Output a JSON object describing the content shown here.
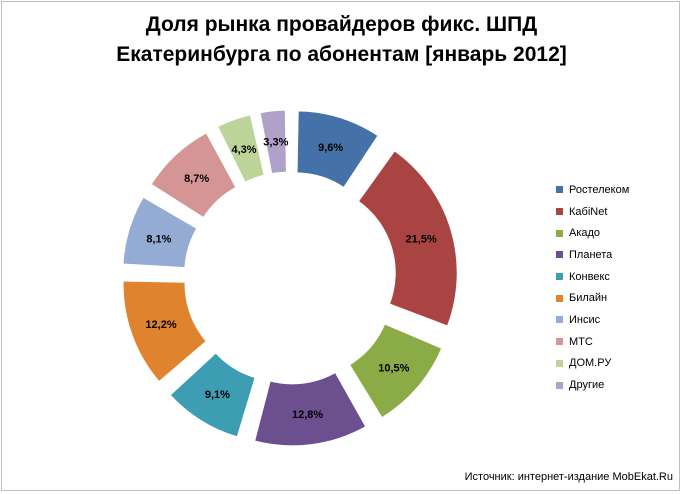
{
  "chart_data": {
    "type": "pie",
    "variant": "exploded-doughnut",
    "title_lines": [
      "Доля рынка провайдеров фикс. ШПД",
      "Екатеринбурга по абонентам [январь 2012]"
    ],
    "categories": [
      "Ростелеком",
      "КабiNet",
      "Акадо",
      "Планета",
      "Конвекс",
      "Билайн",
      "Инсис",
      "МТС",
      "ДОМ.РУ",
      "Другие"
    ],
    "values": [
      9.6,
      21.5,
      10.5,
      12.8,
      9.1,
      12.2,
      8.1,
      8.7,
      4.3,
      3.3
    ],
    "data_labels": [
      "9,6%",
      "21,5%",
      "10,5%",
      "12,8%",
      "9,1%",
      "12,2%",
      "8,1%",
      "8,7%",
      "4,3%",
      "3,3%"
    ],
    "colors": [
      "#4472a8",
      "#a94442",
      "#8aab45",
      "#6b4f8f",
      "#3d9db3",
      "#e0832f",
      "#94acd3",
      "#d69595",
      "#bcd49a",
      "#afa1c9"
    ],
    "legend_position": "right",
    "source_note": "Источник: интернет-издание MobEkat.Ru"
  }
}
